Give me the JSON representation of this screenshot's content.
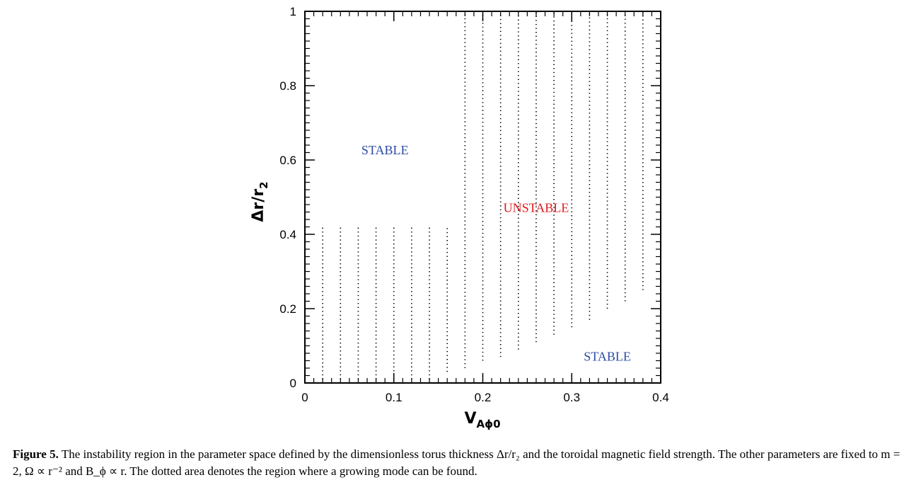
{
  "chart_data": {
    "type": "scatter",
    "title": "",
    "xlabel": "V",
    "xlabel_subscript": "Aϕ0",
    "ylabel": "Δr/r",
    "ylabel_subscript": "2",
    "xlim": [
      0,
      0.4
    ],
    "ylim": [
      0,
      1
    ],
    "x_ticks": [
      0,
      0.1,
      0.2,
      0.3,
      0.4
    ],
    "x_tick_labels": [
      "0",
      "0.1",
      "0.2",
      "0.3",
      "0.4"
    ],
    "y_ticks": [
      0,
      0.2,
      0.4,
      0.6,
      0.8,
      1
    ],
    "y_tick_labels": [
      "0",
      "0.2",
      "0.4",
      "0.6",
      "0.8",
      "1"
    ],
    "grid": false,
    "series": [
      {
        "style": "dotted vertical lines",
        "x": [
          0.02,
          0.04,
          0.06,
          0.08,
          0.1,
          0.12,
          0.14,
          0.16,
          0.18,
          0.2,
          0.22,
          0.24,
          0.26,
          0.28,
          0.3,
          0.32,
          0.34,
          0.36,
          0.38
        ],
        "y_min": [
          0.01,
          0.01,
          0.01,
          0.01,
          0.01,
          0.01,
          0.01,
          0.03,
          0.04,
          0.06,
          0.07,
          0.09,
          0.11,
          0.13,
          0.15,
          0.17,
          0.2,
          0.22,
          0.25
        ],
        "y_max": [
          0.42,
          0.42,
          0.42,
          0.42,
          0.42,
          0.42,
          0.42,
          0.42,
          1.0,
          1.0,
          1.0,
          1.0,
          1.0,
          1.0,
          1.0,
          1.0,
          1.0,
          1.0,
          1.0
        ]
      }
    ],
    "annotations": [
      {
        "text": "STABLE",
        "x": 0.09,
        "y": 0.615,
        "color": "#2b4aa6"
      },
      {
        "text": "UNSTABLE",
        "x": 0.26,
        "y": 0.46,
        "color": "#e0191c"
      },
      {
        "text": "STABLE",
        "x": 0.34,
        "y": 0.06,
        "color": "#2b4aa6"
      }
    ]
  },
  "caption": {
    "figure_number": "Figure 5.",
    "text": "The instability region in the parameter space defined by the dimensionless torus thickness Δr/r₂ and the toroidal magnetic field strength. The other parameters are fixed to m = 2, Ω ∝ r⁻² and B_ϕ ∝ r. The dotted area denotes the region where a growing mode can be found."
  }
}
